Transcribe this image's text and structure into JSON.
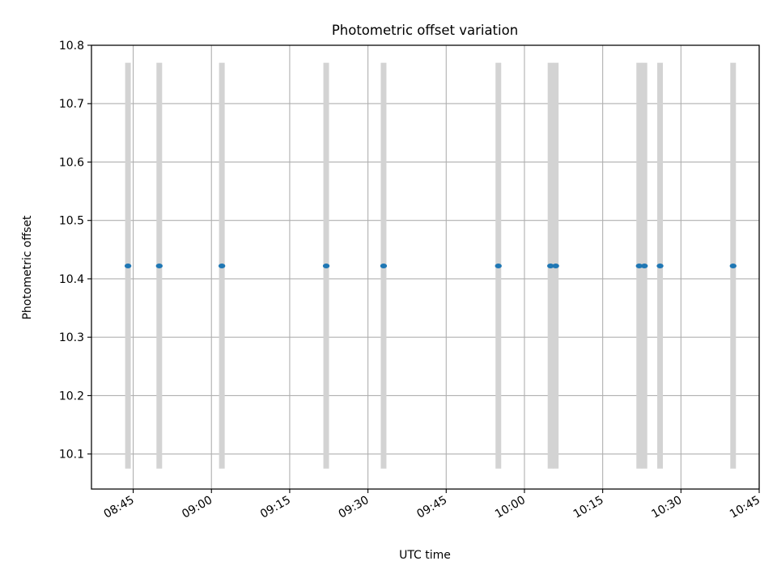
{
  "chart_data": {
    "type": "scatter",
    "title": "Photometric offset variation",
    "xlabel": "UTC time",
    "ylabel": "Photometric offset",
    "grid": true,
    "xlim": [
      "08:37",
      "10:45"
    ],
    "ylim": [
      10.04,
      10.8
    ],
    "x_ticks": [
      "08:45",
      "09:00",
      "09:15",
      "09:30",
      "09:45",
      "10:00",
      "10:15",
      "10:30",
      "10:45"
    ],
    "y_ticks": [
      "10.1",
      "10.2",
      "10.3",
      "10.4",
      "10.5",
      "10.6",
      "10.7",
      "10.8"
    ],
    "band_range": [
      10.075,
      10.77
    ],
    "band_color": "#d3d3d3",
    "point_color": "#1f77b4",
    "points": [
      {
        "x": "08:44",
        "y": 10.422
      },
      {
        "x": "08:50",
        "y": 10.422
      },
      {
        "x": "09:02",
        "y": 10.422
      },
      {
        "x": "09:22",
        "y": 10.422
      },
      {
        "x": "09:33",
        "y": 10.422
      },
      {
        "x": "09:55",
        "y": 10.422
      },
      {
        "x": "10:05",
        "y": 10.422
      },
      {
        "x": "10:06",
        "y": 10.422
      },
      {
        "x": "10:22",
        "y": 10.422
      },
      {
        "x": "10:23",
        "y": 10.422
      },
      {
        "x": "10:26",
        "y": 10.422
      },
      {
        "x": "10:40",
        "y": 10.422
      }
    ]
  }
}
